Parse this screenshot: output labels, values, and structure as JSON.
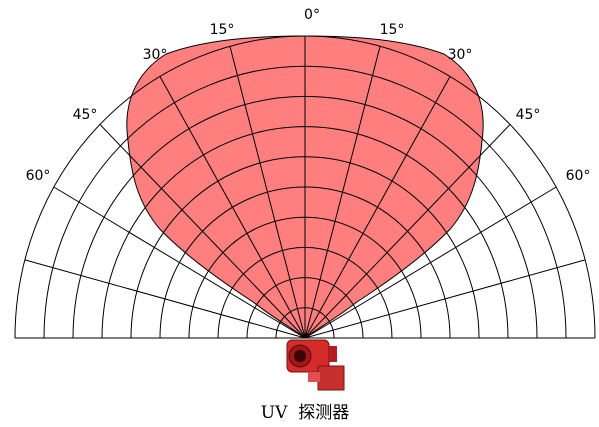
{
  "labels": {
    "top": "0°",
    "left": [
      "15°",
      "30°",
      "45°",
      "60°"
    ],
    "right": [
      "15°",
      "30°",
      "45°",
      "60°"
    ]
  },
  "caption": "UV  探测器"
}
